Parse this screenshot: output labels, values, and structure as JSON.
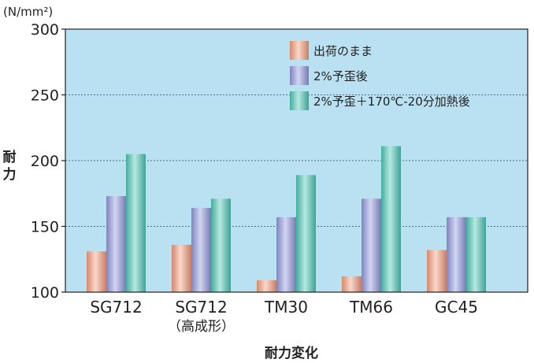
{
  "chart_data": {
    "type": "bar",
    "unit": "(N/mm²)",
    "ylabel": "耐力",
    "xlabel": "耐力変化",
    "ylim": [
      100,
      300
    ],
    "yticks": [
      100,
      150,
      200,
      250,
      300
    ],
    "grid": true,
    "legend_position": "top-right",
    "categories": [
      {
        "label": "SG712",
        "sublabel": ""
      },
      {
        "label": "SG712",
        "sublabel": "（高成形）"
      },
      {
        "label": "TM30",
        "sublabel": ""
      },
      {
        "label": "TM66",
        "sublabel": ""
      },
      {
        "label": "GC45",
        "sublabel": ""
      }
    ],
    "series": [
      {
        "name": "出荷のまま",
        "color": "#f39a7b",
        "values": [
          131,
          136,
          109,
          112,
          132
        ]
      },
      {
        "name": "2%予歪後",
        "color": "#8f96dc",
        "values": [
          173,
          164,
          157,
          171,
          157
        ]
      },
      {
        "name": "2%予歪＋170℃-20分加熱後",
        "color": "#4cc6b3",
        "values": [
          205,
          171,
          189,
          211,
          157
        ]
      }
    ],
    "colors": {
      "plot_background": "#b9e1f1",
      "grid": "#4a6f8c",
      "axis": "#231f20"
    }
  }
}
